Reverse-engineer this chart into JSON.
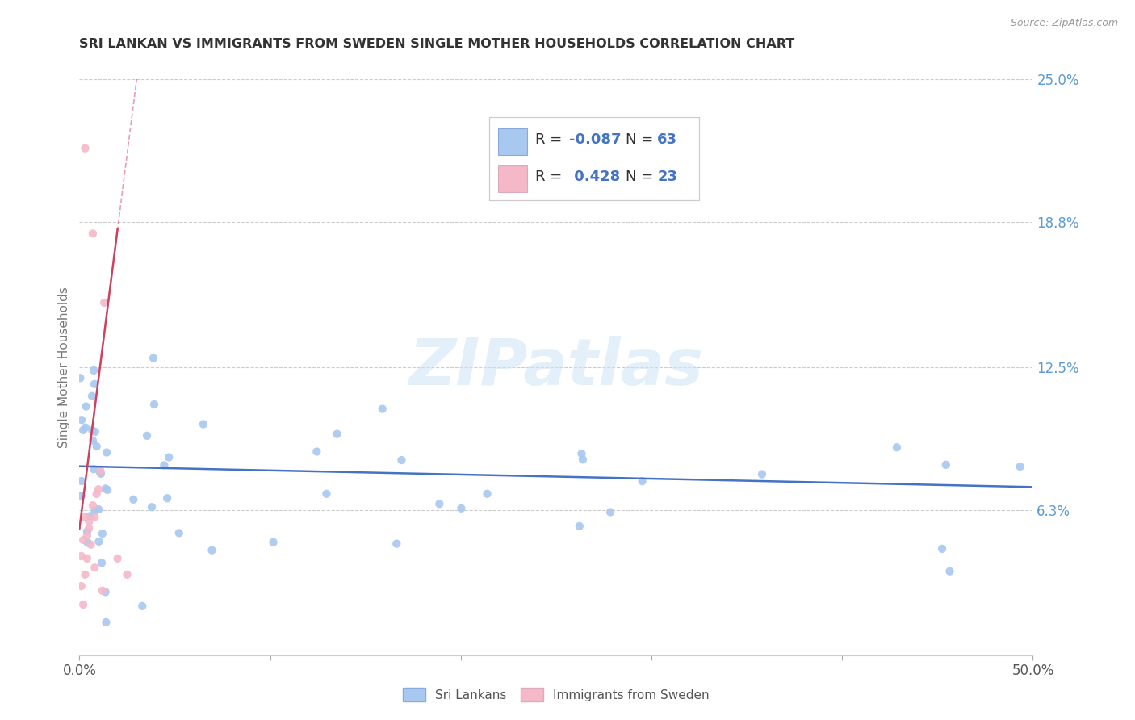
{
  "title": "SRI LANKAN VS IMMIGRANTS FROM SWEDEN SINGLE MOTHER HOUSEHOLDS CORRELATION CHART",
  "source": "Source: ZipAtlas.com",
  "ylabel": "Single Mother Households",
  "xlim": [
    0.0,
    0.5
  ],
  "ylim": [
    0.0,
    0.25
  ],
  "ytick_right_labels": [
    "6.3%",
    "12.5%",
    "18.8%",
    "25.0%"
  ],
  "ytick_right_values": [
    0.063,
    0.125,
    0.188,
    0.25
  ],
  "watermark_text": "ZIPatlas",
  "color_blue": "#a8c8f0",
  "color_blue_line": "#4472c4",
  "color_pink": "#f4b8c8",
  "color_pink_line": "#d04060",
  "color_axis_label": "#5b9bd5",
  "color_grid": "#c0c0c0",
  "r1": "-0.087",
  "n1": "63",
  "r2": "0.428",
  "n2": "23",
  "legend_label1": "Sri Lankans",
  "legend_label2": "Immigrants from Sweden"
}
